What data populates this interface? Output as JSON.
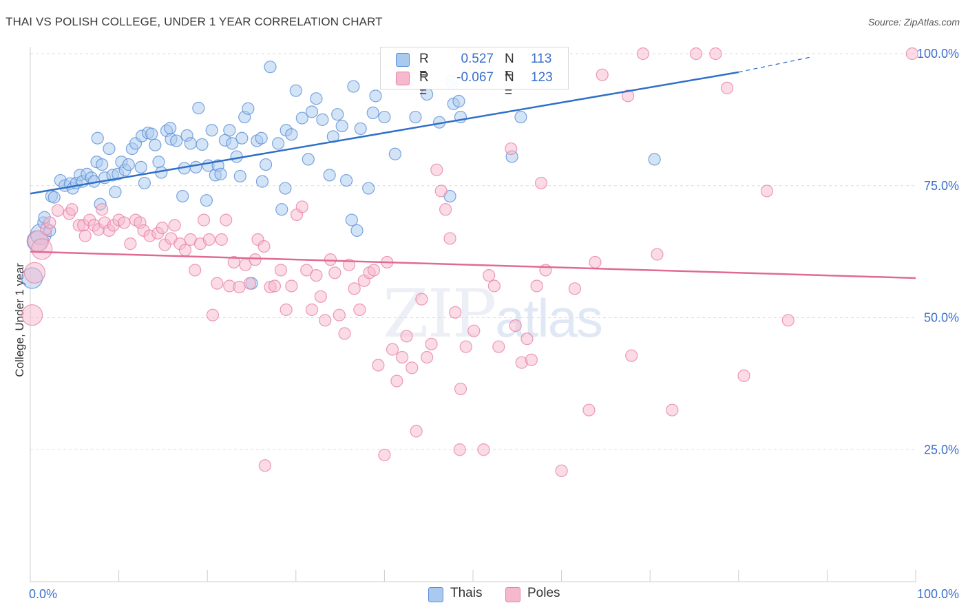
{
  "title": "THAI VS POLISH COLLEGE, UNDER 1 YEAR CORRELATION CHART",
  "source": "Source: ZipAtlas.com",
  "watermark": {
    "zip": "ZIP",
    "atlas": "atlas"
  },
  "legend": {
    "rows": [
      {
        "r_label": "R =",
        "r_value": "0.527",
        "n_label": "N =",
        "n_value": "113"
      },
      {
        "r_label": "R =",
        "r_value": "-0.067",
        "n_label": "N =",
        "n_value": "123"
      }
    ]
  },
  "bottom_legend": {
    "thais": "Thais",
    "poles": "Poles"
  },
  "colors": {
    "thais_fill": "#a9c9ef",
    "thais_stroke": "#5b8fd6",
    "thais_line": "#2f6fc8",
    "poles_fill": "#f5b8cd",
    "poles_stroke": "#e882a6",
    "poles_line": "#e06a95",
    "tick_label": "#3a6fcc",
    "grid": "#dddddd"
  },
  "chart_data": {
    "type": "scatter",
    "title": "THAI VS POLISH COLLEGE, UNDER 1 YEAR CORRELATION CHART",
    "xlabel": "",
    "ylabel": "College, Under 1 year",
    "xlim": [
      0,
      100
    ],
    "ylim": [
      0,
      100
    ],
    "x_tick_labels": [
      "0.0%",
      "100.0%"
    ],
    "y_tick_labels": [
      "100.0%",
      "75.0%",
      "50.0%",
      "25.0%"
    ],
    "y_ticks": [
      100,
      75,
      50,
      25
    ],
    "grid": true,
    "series": [
      {
        "name": "Thais",
        "r": 0.527,
        "n": 113,
        "trend": {
          "x": [
            0,
            80,
            88
          ],
          "y": [
            73.5,
            96.5,
            99.3
          ],
          "dashed_from_x": 80
        },
        "points": [
          [
            0.2,
            57.5
          ],
          [
            0.8,
            64.5
          ],
          [
            1.2,
            65.8
          ],
          [
            1.5,
            68
          ],
          [
            1.6,
            69
          ],
          [
            2.2,
            66.5
          ],
          [
            2.4,
            73
          ],
          [
            2.7,
            72.8
          ],
          [
            3.4,
            76
          ],
          [
            3.9,
            75
          ],
          [
            4.5,
            75.4
          ],
          [
            4.8,
            74.5
          ],
          [
            5.2,
            75.5
          ],
          [
            5.6,
            77
          ],
          [
            5.9,
            75.8
          ],
          [
            6.4,
            77.2
          ],
          [
            6.9,
            76.5
          ],
          [
            7.2,
            75.8
          ],
          [
            7.5,
            79.5
          ],
          [
            7.6,
            84
          ],
          [
            7.9,
            71.5
          ],
          [
            8.1,
            79
          ],
          [
            8.4,
            76.5
          ],
          [
            8.9,
            82
          ],
          [
            9.3,
            77
          ],
          [
            9.6,
            73.8
          ],
          [
            9.9,
            77.2
          ],
          [
            10.3,
            79.5
          ],
          [
            10.7,
            78
          ],
          [
            11.1,
            79
          ],
          [
            11.5,
            82
          ],
          [
            11.9,
            83
          ],
          [
            12.5,
            78.5
          ],
          [
            12.6,
            84.4
          ],
          [
            12.9,
            75.5
          ],
          [
            13.3,
            85
          ],
          [
            13.7,
            84.8
          ],
          [
            14.1,
            82.7
          ],
          [
            14.5,
            79.5
          ],
          [
            14.8,
            77.5
          ],
          [
            15.4,
            85.4
          ],
          [
            15.8,
            85.9
          ],
          [
            15.9,
            83.8
          ],
          [
            16.5,
            83.5
          ],
          [
            17.2,
            73
          ],
          [
            17.4,
            78.3
          ],
          [
            17.7,
            84.5
          ],
          [
            18.1,
            83
          ],
          [
            18.7,
            78.5
          ],
          [
            19,
            89.7
          ],
          [
            19.4,
            82.8
          ],
          [
            19.9,
            72.2
          ],
          [
            20.1,
            78.8
          ],
          [
            20.5,
            85.5
          ],
          [
            20.9,
            77
          ],
          [
            21.2,
            78.8
          ],
          [
            21.5,
            77.2
          ],
          [
            22,
            83.6
          ],
          [
            22.5,
            85.5
          ],
          [
            22.8,
            83
          ],
          [
            23.3,
            80.5
          ],
          [
            23.7,
            76.8
          ],
          [
            23.9,
            84
          ],
          [
            24.2,
            88
          ],
          [
            24.6,
            89.6
          ],
          [
            25,
            56.5
          ],
          [
            25.6,
            83.5
          ],
          [
            26.1,
            84
          ],
          [
            26.2,
            75.8
          ],
          [
            26.6,
            79
          ],
          [
            27.1,
            97.5
          ],
          [
            28,
            83
          ],
          [
            28.4,
            70.5
          ],
          [
            28.8,
            74.5
          ],
          [
            28.9,
            85.5
          ],
          [
            29.5,
            84.7
          ],
          [
            30,
            93
          ],
          [
            30.7,
            87.8
          ],
          [
            31.4,
            80
          ],
          [
            31.8,
            89
          ],
          [
            32.3,
            91.5
          ],
          [
            33,
            87.5
          ],
          [
            33.8,
            77
          ],
          [
            34.2,
            84.3
          ],
          [
            34.7,
            88.5
          ],
          [
            35.2,
            86.3
          ],
          [
            35.7,
            76
          ],
          [
            36.3,
            68.5
          ],
          [
            36.5,
            93.8
          ],
          [
            36.9,
            66.5
          ],
          [
            37.3,
            85.8
          ],
          [
            38.2,
            74.5
          ],
          [
            38.7,
            88.8
          ],
          [
            39,
            92
          ],
          [
            40,
            88
          ],
          [
            41.2,
            81
          ],
          [
            41.9,
            95
          ],
          [
            43.5,
            88
          ],
          [
            44.8,
            92.3
          ],
          [
            46.2,
            87
          ],
          [
            47.4,
            73
          ],
          [
            47.5,
            94.8
          ],
          [
            47.8,
            90.5
          ],
          [
            48.4,
            91
          ],
          [
            48.6,
            88
          ],
          [
            50.3,
            97
          ],
          [
            54.4,
            80.5
          ],
          [
            55.4,
            88
          ],
          [
            70.5,
            80
          ]
        ]
      },
      {
        "name": "Poles",
        "r": -0.067,
        "n": 123,
        "trend": {
          "x": [
            0,
            100
          ],
          "y": [
            62.5,
            57.5
          ]
        },
        "points": [
          [
            0.2,
            50.5
          ],
          [
            0.5,
            58.5
          ],
          [
            0.9,
            64.5
          ],
          [
            1.3,
            63
          ],
          [
            1.8,
            66.8
          ],
          [
            2.2,
            68
          ],
          [
            3.1,
            70.3
          ],
          [
            4.4,
            69.7
          ],
          [
            4.7,
            70.5
          ],
          [
            5.5,
            67.5
          ],
          [
            6,
            67.5
          ],
          [
            6.2,
            65.5
          ],
          [
            6.7,
            68.5
          ],
          [
            7.2,
            67.5
          ],
          [
            7.7,
            66.7
          ],
          [
            8.1,
            70.5
          ],
          [
            8.4,
            68
          ],
          [
            8.9,
            66.5
          ],
          [
            9.4,
            67.5
          ],
          [
            10,
            68.5
          ],
          [
            10.6,
            68
          ],
          [
            11.3,
            64
          ],
          [
            11.9,
            68.5
          ],
          [
            12.4,
            68
          ],
          [
            12.8,
            66.5
          ],
          [
            13.5,
            65.5
          ],
          [
            14.4,
            66
          ],
          [
            14.9,
            67
          ],
          [
            15.2,
            63.8
          ],
          [
            15.9,
            65
          ],
          [
            16.3,
            67.5
          ],
          [
            16.9,
            64
          ],
          [
            17.5,
            62.8
          ],
          [
            18.1,
            64.8
          ],
          [
            18.6,
            59
          ],
          [
            19.2,
            64
          ],
          [
            19.6,
            68.5
          ],
          [
            20.2,
            64.8
          ],
          [
            20.6,
            50.5
          ],
          [
            21.1,
            56.5
          ],
          [
            21.6,
            64.8
          ],
          [
            22.1,
            68.5
          ],
          [
            22.5,
            56
          ],
          [
            23,
            60.5
          ],
          [
            23.6,
            55.8
          ],
          [
            24.3,
            60
          ],
          [
            24.8,
            56.5
          ],
          [
            25.4,
            61
          ],
          [
            25.7,
            64.8
          ],
          [
            26.4,
            63.5
          ],
          [
            27.1,
            55.8
          ],
          [
            27.6,
            56
          ],
          [
            28.3,
            59
          ],
          [
            28.9,
            51.5
          ],
          [
            29.5,
            56
          ],
          [
            30.1,
            69.5
          ],
          [
            30.7,
            71
          ],
          [
            31.2,
            59
          ],
          [
            31.8,
            51.5
          ],
          [
            32.3,
            58
          ],
          [
            32.8,
            54
          ],
          [
            33.3,
            49.5
          ],
          [
            33.9,
            61
          ],
          [
            34.4,
            58.5
          ],
          [
            34.9,
            50.5
          ],
          [
            35.5,
            47
          ],
          [
            36,
            60
          ],
          [
            36.6,
            55.5
          ],
          [
            37.2,
            51.5
          ],
          [
            37.7,
            57
          ],
          [
            38.3,
            58.5
          ],
          [
            38.8,
            59
          ],
          [
            39.3,
            41
          ],
          [
            40.3,
            60.5
          ],
          [
            40.9,
            44
          ],
          [
            41.4,
            38
          ],
          [
            42,
            42.5
          ],
          [
            42.5,
            46.5
          ],
          [
            43.1,
            40.5
          ],
          [
            43.6,
            28.5
          ],
          [
            44.2,
            53.5
          ],
          [
            44.8,
            42.5
          ],
          [
            45.3,
            45
          ],
          [
            45.9,
            78
          ],
          [
            46.4,
            74
          ],
          [
            46.9,
            70.5
          ],
          [
            47.4,
            65
          ],
          [
            48,
            51
          ],
          [
            48.6,
            36.5
          ],
          [
            49.2,
            44.5
          ],
          [
            50.1,
            47.5
          ],
          [
            51.2,
            25
          ],
          [
            51.8,
            58
          ],
          [
            52.4,
            56
          ],
          [
            52.9,
            44.5
          ],
          [
            54.3,
            82
          ],
          [
            54.8,
            48.5
          ],
          [
            55.5,
            41.5
          ],
          [
            56.1,
            46
          ],
          [
            56.6,
            42
          ],
          [
            57.2,
            56
          ],
          [
            57.7,
            75.5
          ],
          [
            58.2,
            59
          ],
          [
            61.5,
            55.5
          ],
          [
            63.1,
            32.5
          ],
          [
            63.8,
            60.5
          ],
          [
            64.6,
            96
          ],
          [
            67.5,
            92
          ],
          [
            67.9,
            42.8
          ],
          [
            69.2,
            100
          ],
          [
            70.8,
            62
          ],
          [
            72.5,
            32.5
          ],
          [
            75.2,
            100
          ],
          [
            77.4,
            100
          ],
          [
            78.7,
            93.5
          ],
          [
            80.6,
            39
          ],
          [
            83.2,
            74
          ],
          [
            85.6,
            49.5
          ],
          [
            99.6,
            100
          ],
          [
            48.5,
            25
          ],
          [
            26.5,
            22
          ],
          [
            40,
            24
          ],
          [
            60,
            21
          ]
        ]
      }
    ]
  }
}
